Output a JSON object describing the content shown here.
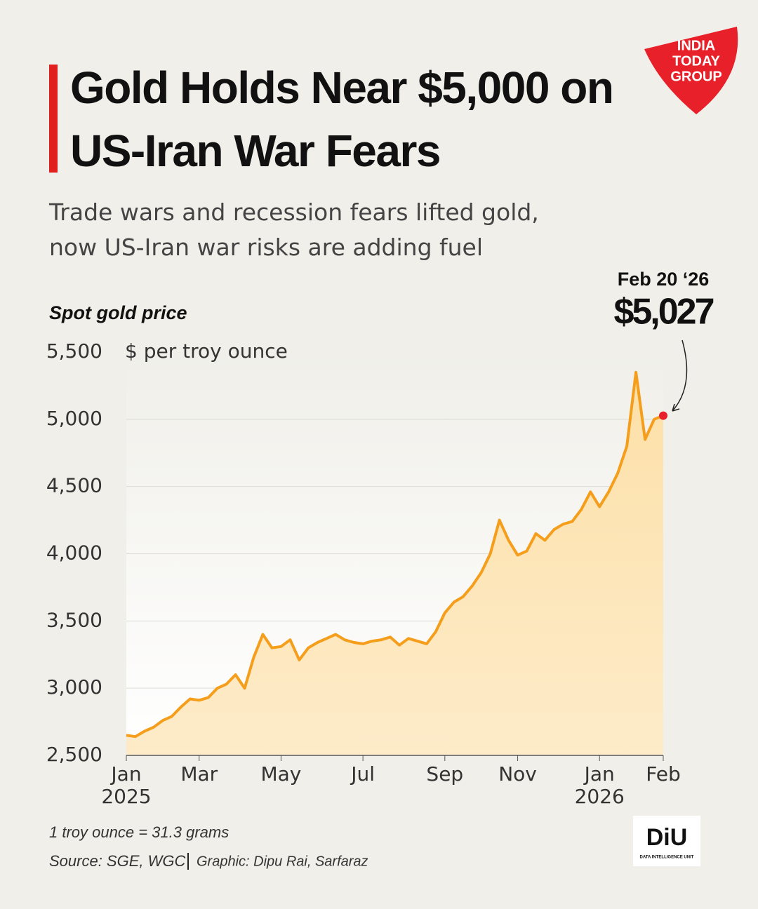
{
  "header": {
    "title": "Gold Holds Near $5,000 on US-Iran War Fears",
    "subtitle": "Trade wars and recession fears lifted gold, now US-Iran war risks are adding fuel"
  },
  "logos": {
    "brand": [
      "INDIA",
      "TODAY",
      "GROUP"
    ],
    "unit": "DiU",
    "unit_name": "DATA INTELLIGENCE UNIT"
  },
  "chart_data": {
    "type": "area",
    "y_label": "Spot gold price",
    "y_unit": "$ per troy ounce",
    "annotation": "Feb 20 ‘26",
    "categories": [
      "Jan 2025",
      null,
      null,
      null,
      null,
      null,
      null,
      null,
      "Mar",
      null,
      null,
      null,
      null,
      null,
      null,
      null,
      null,
      "May",
      null,
      null,
      null,
      null,
      null,
      null,
      null,
      null,
      "Jul",
      null,
      null,
      null,
      null,
      null,
      null,
      null,
      null,
      "Sep",
      null,
      null,
      null,
      null,
      null,
      null,
      null,
      "Nov",
      null,
      null,
      null,
      null,
      null,
      null,
      null,
      null,
      "Jan 2026",
      null,
      null,
      null,
      null,
      null,
      null,
      "Feb"
    ],
    "values": [
      2650,
      2640,
      2680,
      2710,
      2760,
      2790,
      2860,
      2920,
      2910,
      2930,
      3000,
      3030,
      3100,
      3000,
      3230,
      3400,
      3300,
      3310,
      3360,
      3210,
      3300,
      3340,
      3370,
      3400,
      3360,
      3340,
      3330,
      3350,
      3360,
      3380,
      3320,
      3370,
      3350,
      3330,
      3420,
      3560,
      3640,
      3680,
      3760,
      3860,
      4000,
      4250,
      4100,
      3990,
      4020,
      4150,
      4100,
      4180,
      4220,
      4240,
      4330,
      4460,
      4350,
      4460,
      4600,
      4800,
      5350,
      4850,
      5000,
      5027
    ],
    "value_labels": [
      null,
      null,
      null,
      null,
      null,
      null,
      null,
      null,
      null,
      null,
      null,
      null,
      null,
      null,
      null,
      null,
      null,
      null,
      null,
      null,
      null,
      null,
      null,
      null,
      null,
      null,
      null,
      null,
      null,
      null,
      null,
      null,
      null,
      null,
      null,
      null,
      null,
      null,
      null,
      null,
      null,
      null,
      null,
      null,
      null,
      null,
      null,
      null,
      null,
      null,
      null,
      null,
      null,
      null,
      null,
      null,
      null,
      null,
      null,
      "$5,027"
    ],
    "color": "#f59e1c",
    "highlight_color": "#e8202a",
    "ylim": [
      2500,
      5500
    ],
    "yticks": [
      {
        "value": 2500,
        "label": "2,500"
      },
      {
        "value": 3000,
        "label": "3,000"
      },
      {
        "value": 3500,
        "label": "3,500"
      },
      {
        "value": 4000,
        "label": "4,000"
      },
      {
        "value": 4500,
        "label": "4,500"
      },
      {
        "value": 5000,
        "label": "5,000"
      },
      {
        "value": 5500,
        "label": "5,500"
      }
    ],
    "grid": true
  },
  "footer": {
    "note": "1 troy ounce = 31.3 grams",
    "source": "Source: SGE, WGC",
    "credit": "Graphic: Dipu Rai, Sarfaraz"
  }
}
